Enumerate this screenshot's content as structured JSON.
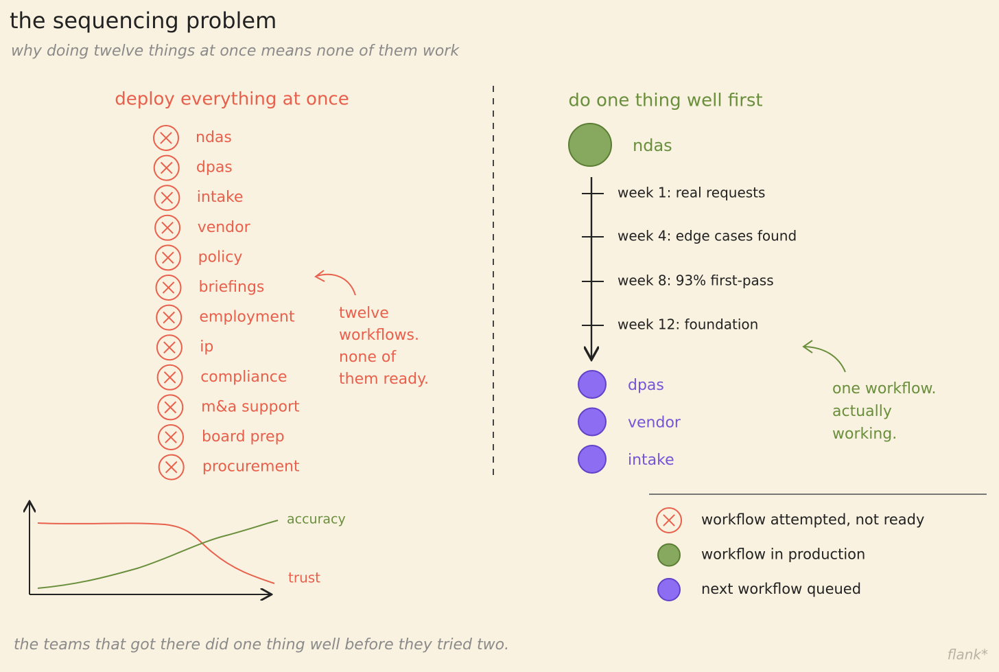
{
  "header": {
    "title": "the sequencing problem",
    "subtitle": "why doing twelve things at once means none of them work"
  },
  "left": {
    "heading": "deploy everything at once",
    "items": [
      "ndas",
      "dpas",
      "intake",
      "vendor",
      "policy",
      "briefings",
      "employment",
      "ip",
      "compliance",
      "m&a support",
      "board prep",
      "procurement"
    ],
    "annotation": [
      "twelve",
      "workflows.",
      "none of",
      "them ready."
    ]
  },
  "right": {
    "heading": "do one thing well first",
    "first": "ndas",
    "steps": [
      "week 1: real requests",
      "week 4: edge cases found",
      "week 8: 93% first-pass",
      "week 12: foundation"
    ],
    "queued": [
      "dpas",
      "vendor",
      "intake"
    ],
    "annotation": [
      "one workflow.",
      "actually",
      "working."
    ]
  },
  "sketch": {
    "rising": "accuracy",
    "falling": "trust"
  },
  "legend": {
    "items": [
      "workflow attempted, not ready",
      "workflow in production",
      "next workflow queued"
    ]
  },
  "footer": {
    "text": "the teams that got there did one thing well before they tried two.",
    "signature": "flank*"
  }
}
